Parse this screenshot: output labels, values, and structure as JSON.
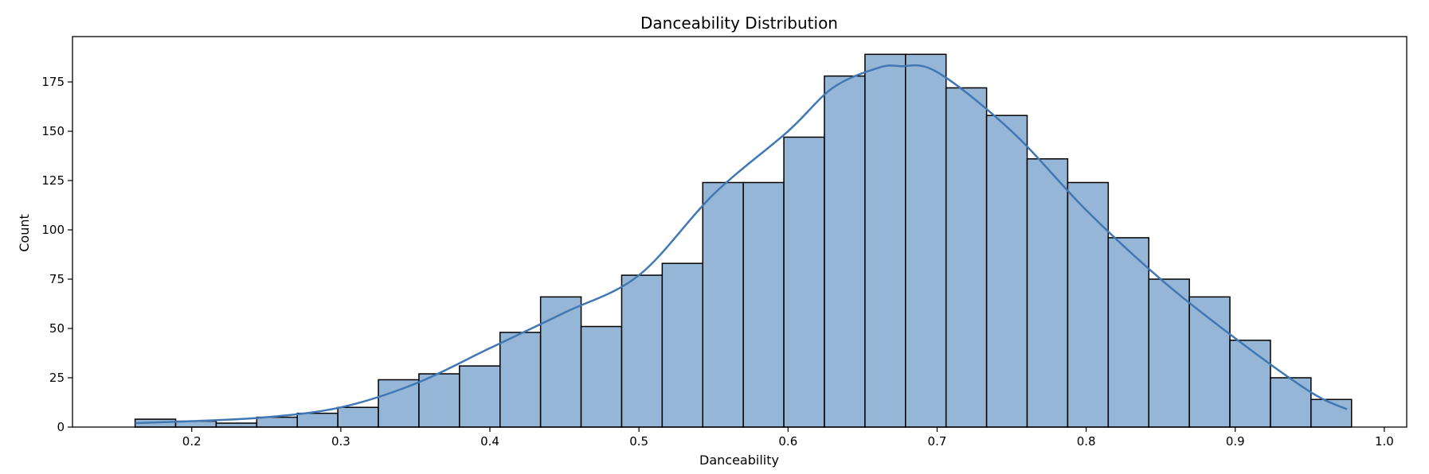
{
  "chart_data": {
    "type": "histogram",
    "title": "Danceability Distribution",
    "xlabel": "Danceability",
    "ylabel": "Count",
    "xlim": [
      0.12,
      1.015
    ],
    "ylim": [
      0,
      198
    ],
    "xticks": [
      "0.2",
      "0.3",
      "0.4",
      "0.5",
      "0.6",
      "0.7",
      "0.8",
      "0.9",
      "1.0"
    ],
    "yticks": [
      "0",
      "25",
      "50",
      "75",
      "100",
      "125",
      "150",
      "175"
    ],
    "bin_start": 0.162,
    "bin_width": 0.0272,
    "counts": [
      4,
      3,
      2,
      5,
      7,
      10,
      24,
      27,
      31,
      48,
      66,
      51,
      77,
      83,
      124,
      124,
      147,
      178,
      189,
      189,
      172,
      158,
      136,
      124,
      96,
      75,
      66,
      44,
      25,
      14
    ],
    "kde": {
      "x": [
        0.162,
        0.2,
        0.25,
        0.3,
        0.35,
        0.4,
        0.45,
        0.5,
        0.55,
        0.6,
        0.63,
        0.66,
        0.675,
        0.7,
        0.75,
        0.8,
        0.85,
        0.9,
        0.95,
        0.975
      ],
      "y": [
        2,
        3,
        5,
        10,
        22,
        40,
        58,
        77,
        118,
        150,
        172,
        182,
        183,
        180,
        150,
        110,
        75,
        45,
        18,
        9
      ]
    },
    "bar_color": "#95b6d6",
    "bar_edge_color": "#000000",
    "kde_color": "#4178b4",
    "grid": false,
    "legend": "none"
  }
}
